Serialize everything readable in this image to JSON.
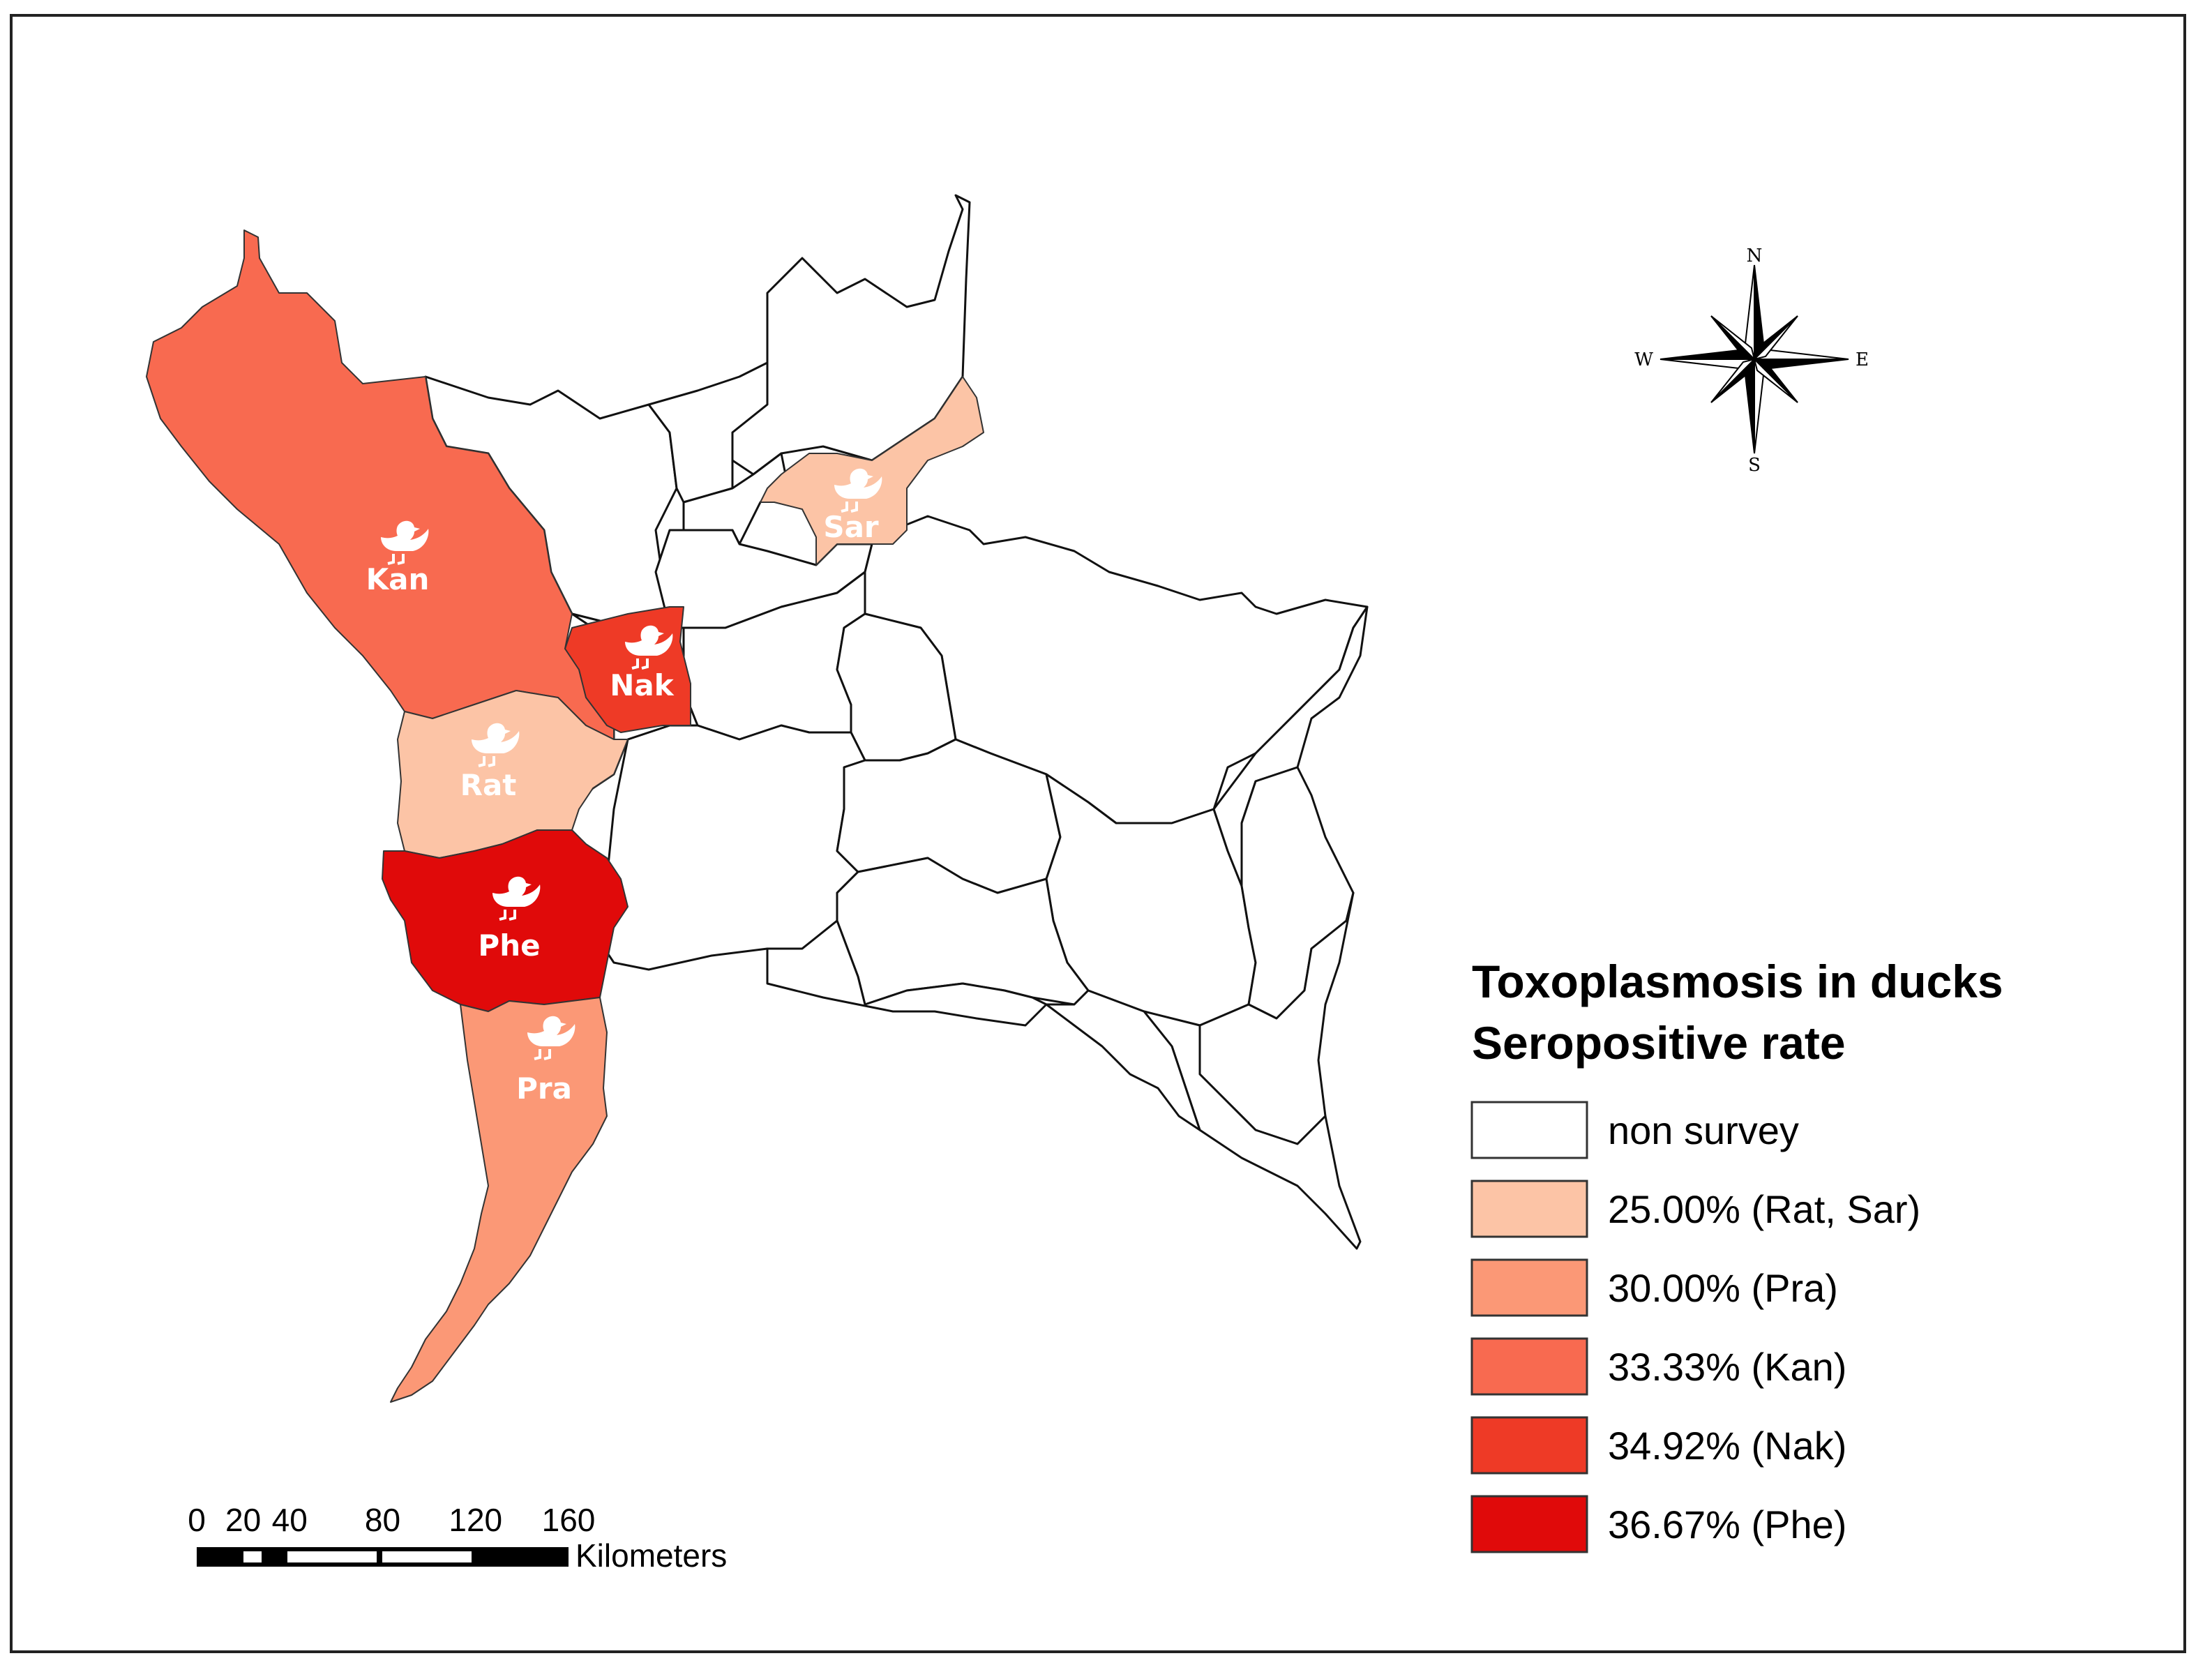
{
  "legend": {
    "title_line1": "Toxoplasmosis in ducks",
    "title_line2": "Seropositive rate",
    "items": [
      {
        "label": "non survey",
        "color": "#ffffff"
      },
      {
        "label": "25.00% (Rat, Sar)",
        "color": "#fcc4a6"
      },
      {
        "label": "30.00% (Pra)",
        "color": "#fb9876"
      },
      {
        "label": "33.33% (Kan)",
        "color": "#f86a50"
      },
      {
        "label": "34.92% (Nak)",
        "color": "#ee3a26"
      },
      {
        "label": "36.67% (Phe)",
        "color": "#e00a0a"
      }
    ]
  },
  "provinces": {
    "kan": {
      "label": "Kan",
      "rate": "33.33%",
      "color": "#f86a50"
    },
    "nak": {
      "label": "Nak",
      "rate": "34.92%",
      "color": "#ee3a26"
    },
    "rat": {
      "label": "Rat",
      "rate": "25.00%",
      "color": "#fcc4a6"
    },
    "sar": {
      "label": "Sar",
      "rate": "25.00%",
      "color": "#fcc4a6"
    },
    "phe": {
      "label": "Phe",
      "rate": "36.67%",
      "color": "#e00a0a"
    },
    "pra": {
      "label": "Pra",
      "rate": "30.00%",
      "color": "#fb9876"
    }
  },
  "scale_bar": {
    "ticks": [
      "0",
      "20",
      "40",
      "80",
      "120",
      "160"
    ],
    "unit": "Kilometers"
  },
  "compass": {
    "n": "N",
    "s": "S",
    "e": "E",
    "w": "W"
  },
  "icon": "duck-icon"
}
